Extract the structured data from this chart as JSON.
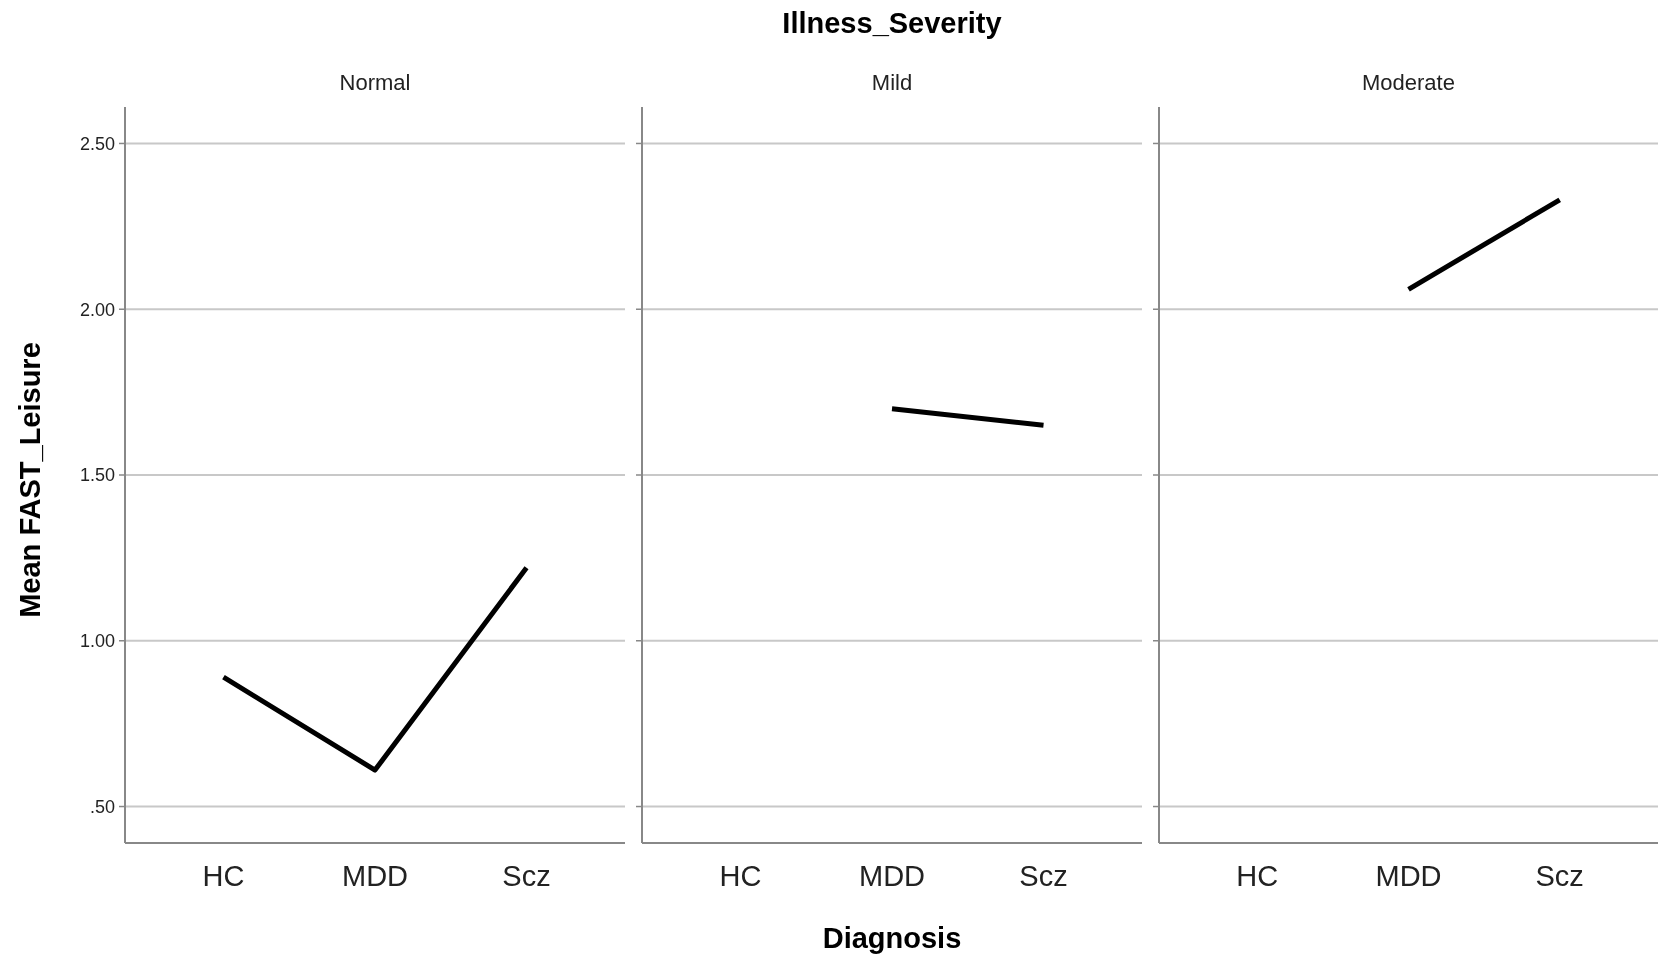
{
  "chart_data": [
    {
      "type": "line",
      "subtitle": "Normal",
      "ylabel": "Mean FAST_Leisure",
      "categories": [
        "HC",
        "MDD",
        "Scz"
      ],
      "series": [
        {
          "color": "#000000",
          "values": [
            0.89,
            0.61,
            1.22
          ]
        }
      ],
      "ylim": [
        0.39,
        2.61
      ],
      "yticks": [
        {
          "value": 0.5,
          "label": ".50"
        },
        {
          "value": 1,
          "label": "1.00"
        },
        {
          "value": 1.5,
          "label": "1.50"
        },
        {
          "value": 2,
          "label": "2.00"
        },
        {
          "value": 2.5,
          "label": "2.50"
        }
      ],
      "grid": "y",
      "marker": "none",
      "line_style": "solid"
    },
    {
      "type": "line",
      "title": "Illness_Severity",
      "subtitle": "Mild",
      "xlabel": "Diagnosis",
      "categories": [
        "HC",
        "MDD",
        "Scz"
      ],
      "series": [
        {
          "color": "#000000",
          "values": [
            null,
            1.7,
            1.65
          ]
        }
      ],
      "ylim": [
        0.39,
        2.61
      ],
      "yticks": [
        0.5,
        1,
        1.5,
        2,
        2.5
      ],
      "grid": "y",
      "marker": "none",
      "line_style": "solid",
      "tick_labels": "x"
    },
    {
      "type": "line",
      "subtitle": "Moderate",
      "categories": [
        "HC",
        "MDD",
        "Scz"
      ],
      "series": [
        {
          "color": "#000000",
          "values": [
            null,
            2.06,
            2.33
          ]
        }
      ],
      "ylim": [
        0.39,
        2.61
      ],
      "yticks": [
        0.5,
        1,
        1.5,
        2,
        2.5
      ],
      "grid": "y",
      "marker": "none",
      "line_style": "solid",
      "tick_labels": "x"
    }
  ]
}
